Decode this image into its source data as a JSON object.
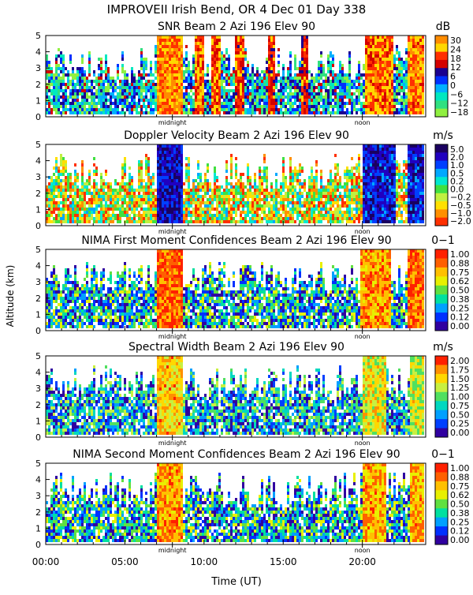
{
  "header": {
    "title": "IMPROVEII  Irish Bend, OR   4 Dec 01 Day 338"
  },
  "axes": {
    "xlabel": "Time (UT)",
    "ylabel": "Altitude (km)",
    "x_ticks": [
      "00:00",
      "05:00",
      "10:00",
      "15:00",
      "20:00"
    ],
    "y_ticks": [
      "0",
      "1",
      "2",
      "3",
      "4",
      "5"
    ],
    "markers": [
      "midnight",
      "noon"
    ]
  },
  "chart_data": [
    {
      "type": "heatmap",
      "title": "SNR Beam 2 Azi 196 Elev 90",
      "unit": "dB",
      "colorbar_ticks": [
        "30",
        "24",
        "18",
        "12",
        "6",
        "0",
        "−6",
        "−12",
        "−18"
      ],
      "xlim": [
        "00:00",
        "24:00"
      ],
      "ylim": [
        0,
        5
      ],
      "palette": [
        "#ff8c00",
        "#ffd700",
        "#ff3000",
        "#d40000",
        "#1b0090",
        "#0030ff",
        "#00b0ff",
        "#00e8c0",
        "#30e080",
        "#90f040"
      ]
    },
    {
      "type": "heatmap",
      "title": "Doppler Velocity Beam 2 Azi 196 Elev 90",
      "unit": "m/s",
      "colorbar_ticks": [
        "5.0",
        "2.0",
        "1.0",
        "0.5",
        "0.2",
        "0.0",
        "−0.2",
        "−0.5",
        "−1.0",
        "−2.0"
      ],
      "xlim": [
        "00:00",
        "24:00"
      ],
      "ylim": [
        0,
        5
      ],
      "palette": [
        "#1a0060",
        "#2000c0",
        "#0040ff",
        "#00a8ff",
        "#00e8d0",
        "#40e040",
        "#c0f040",
        "#ffe000",
        "#ff9000",
        "#ff3000"
      ]
    },
    {
      "type": "heatmap",
      "title": "NIMA First Moment Confidences Beam 2 Azi 196 Elev 90",
      "unit": "0−1",
      "colorbar_ticks": [
        "1.00",
        "0.88",
        "0.75",
        "0.62",
        "0.50",
        "0.38",
        "0.25",
        "0.12",
        "0.00"
      ],
      "xlim": [
        "00:00",
        "24:00"
      ],
      "ylim": [
        0,
        5
      ],
      "palette": [
        "#ff2000",
        "#ff6000",
        "#ffc000",
        "#e8f000",
        "#60e040",
        "#00e0a0",
        "#00a0ff",
        "#0030ff",
        "#3000a0"
      ]
    },
    {
      "type": "heatmap",
      "title": "Spectral Width Beam 2 Azi 196 Elev 90",
      "unit": "m/s",
      "colorbar_ticks": [
        "2.00",
        "1.75",
        "1.50",
        "1.25",
        "1.00",
        "0.75",
        "0.50",
        "0.25",
        "0.00"
      ],
      "xlim": [
        "00:00",
        "24:00"
      ],
      "ylim": [
        0,
        5
      ],
      "palette": [
        "#ff2000",
        "#ff9000",
        "#ffd800",
        "#c8f040",
        "#50e060",
        "#00d8c0",
        "#00a0ff",
        "#0040ff",
        "#3000a0"
      ]
    },
    {
      "type": "heatmap",
      "title": "NIMA Second Moment Confidences Beam 2 Azi 196 Elev 90",
      "unit": "0−1",
      "colorbar_ticks": [
        "1.00",
        "0.88",
        "0.75",
        "0.62",
        "0.50",
        "0.38",
        "0.25",
        "0.12",
        "0.00"
      ],
      "xlim": [
        "00:00",
        "24:00"
      ],
      "ylim": [
        0,
        5
      ],
      "palette": [
        "#ff2000",
        "#ff6000",
        "#ffc000",
        "#e8f000",
        "#60e040",
        "#00e0a0",
        "#00a0ff",
        "#0030ff",
        "#3000a0"
      ]
    }
  ]
}
